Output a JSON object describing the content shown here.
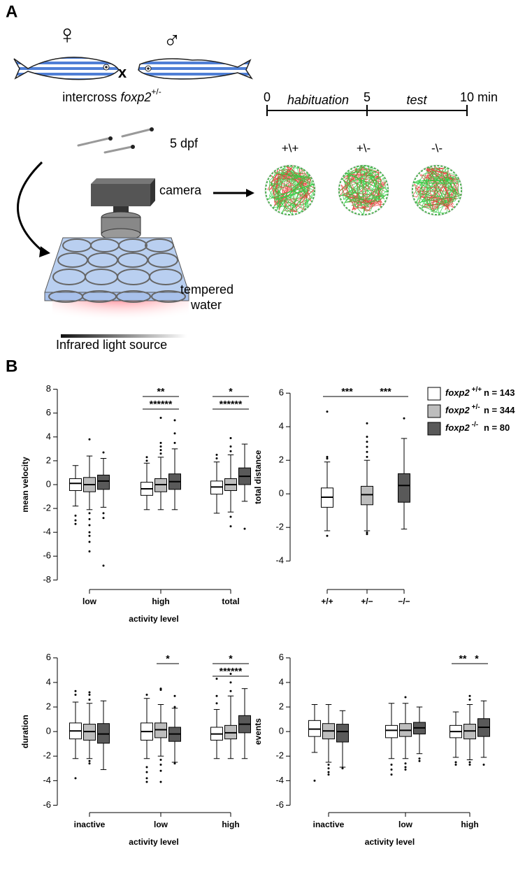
{
  "panel_a": {
    "label": "A",
    "female": "♀",
    "male": "♂",
    "cross": "x",
    "intercross": "intercross",
    "gene": "foxp2",
    "genotype": "+/-",
    "dpf": "5 dpf",
    "camera": "camera",
    "water_1": "tempered",
    "water_2": "water",
    "light": "Infrared light source",
    "timeline": {
      "start": "0",
      "phase1": "habituation",
      "mid": "5",
      "phase2": "test",
      "end": "10 min"
    },
    "tracks": [
      "+\\+",
      "+\\-",
      "-\\-"
    ]
  },
  "panel_b": {
    "label": "B"
  },
  "chart_data": [
    {
      "type": "box",
      "ylabel": "mean velocity",
      "xlabel": "activity level",
      "categories": [
        "low",
        "high",
        "total"
      ],
      "dodge": true,
      "ylim": [
        -8.8,
        8.8
      ],
      "yticks": [
        -8,
        -6,
        -4,
        -2,
        0,
        2,
        4,
        6,
        8
      ],
      "series": [
        {
          "color": "#ffffff",
          "boxes": [
            {
              "median": 0.1,
              "q1": -0.5,
              "q3": 0.5,
              "whisker_low": -1.8,
              "whisker_high": 1.6,
              "outliers": [
                -2.6,
                -3.0,
                -3.3
              ]
            },
            {
              "median": -0.35,
              "q1": -0.9,
              "q3": 0.2,
              "whisker_low": -2.1,
              "whisker_high": 1.8,
              "outliers": [
                2.0,
                2.3
              ]
            },
            {
              "median": -0.2,
              "q1": -0.8,
              "q3": 0.3,
              "whisker_low": -2.4,
              "whisker_high": 1.9,
              "outliers": [
                2.2,
                2.5
              ]
            }
          ]
        },
        {
          "color": "#bdbdbd",
          "boxes": [
            {
              "median": 0,
              "q1": -0.6,
              "q3": 0.6,
              "whisker_low": -2.1,
              "whisker_high": 2.4,
              "outliers": [
                3.8,
                -2.4,
                -2.9,
                -3.4,
                -4.0,
                -4.3,
                -4.8,
                -5.6
              ]
            },
            {
              "median": 0,
              "q1": -0.6,
              "q3": 0.5,
              "whisker_low": -2.1,
              "whisker_high": 2.3,
              "outliers": [
                2.6,
                2.9,
                3.2,
                3.5,
                5.6
              ]
            },
            {
              "median": 0,
              "q1": -0.5,
              "q3": 0.5,
              "whisker_low": -2.3,
              "whisker_high": 2.5,
              "outliers": [
                2.8,
                3.2,
                3.9,
                -2.7,
                -3.5
              ]
            }
          ]
        },
        {
          "color": "#595959",
          "boxes": [
            {
              "median": 0.3,
              "q1": -0.4,
              "q3": 0.8,
              "whisker_low": -1.9,
              "whisker_high": 2.2,
              "outliers": [
                2.7,
                -2.4,
                -2.8,
                -6.8
              ]
            },
            {
              "median": 0.25,
              "q1": -0.4,
              "q3": 0.9,
              "whisker_low": -2.1,
              "whisker_high": 3.0,
              "outliers": [
                3.5,
                4.3,
                5.4
              ]
            },
            {
              "median": 0.7,
              "q1": 0,
              "q3": 1.4,
              "whisker_low": -1.4,
              "whisker_high": 3.4,
              "outliers": [
                -3.7
              ]
            }
          ]
        }
      ],
      "annotations": [
        {
          "text": "**",
          "from": [
            1,
            0
          ],
          "to": [
            1,
            2
          ]
        },
        {
          "text": "******",
          "from": [
            1,
            0
          ],
          "to": [
            1,
            2
          ]
        },
        {
          "text": "*",
          "from": [
            2,
            0
          ],
          "to": [
            2,
            2
          ]
        },
        {
          "text": "******",
          "from": [
            2,
            0
          ],
          "to": [
            2,
            2
          ]
        }
      ]
    },
    {
      "type": "box",
      "ylabel": "total distance",
      "categories": [
        "+/+",
        "+/−",
        "−/−"
      ],
      "dodge": false,
      "ylim": [
        -5.7,
        6.8
      ],
      "yticks": [
        -4,
        -2,
        0,
        2,
        4,
        6
      ],
      "legend": true,
      "series": [
        {
          "name": "foxp2",
          "genotype": "+/+",
          "n": "n = 143",
          "color": "#ffffff",
          "boxes": [
            {
              "median": -0.2,
              "q1": -0.8,
              "q3": 0.35,
              "whisker_low": -2.2,
              "whisker_high": 1.9,
              "outliers": [
                2.1,
                2.2,
                4.9,
                -2.5
              ]
            },
            null,
            null
          ]
        },
        {
          "name": "foxp2",
          "genotype": "+/-",
          "n": "n = 344",
          "color": "#bdbdbd",
          "boxes": [
            null,
            {
              "median": -0.05,
              "q1": -0.65,
              "q3": 0.45,
              "whisker_low": -2.2,
              "whisker_high": 2.0,
              "outliers": [
                2.2,
                2.5,
                2.8,
                3.1,
                3.4,
                4.2,
                -2.3,
                -2.4
              ]
            },
            null
          ]
        },
        {
          "name": "foxp2",
          "genotype": "-/-",
          "n": "n = 80",
          "color": "#595959",
          "boxes": [
            null,
            null,
            {
              "median": 0.5,
              "q1": -0.5,
              "q3": 1.2,
              "whisker_low": -2.1,
              "whisker_high": 3.3,
              "outliers": [
                4.5
              ]
            }
          ]
        }
      ],
      "annotations": [
        {
          "text": "***",
          "from": [
            0,
            0
          ],
          "to": [
            1,
            1
          ]
        },
        {
          "text": "***",
          "from": [
            1,
            1
          ],
          "to": [
            2,
            2
          ]
        }
      ]
    },
    {
      "type": "box",
      "ylabel": "duration",
      "xlabel": "activity level",
      "categories": [
        "inactive",
        "low",
        "high"
      ],
      "dodge": true,
      "ylim": [
        -6.6,
        6.9
      ],
      "yticks": [
        -6,
        -4,
        -2,
        0,
        2,
        4,
        6
      ],
      "series": [
        {
          "color": "#ffffff",
          "boxes": [
            {
              "median": 0.05,
              "q1": -0.6,
              "q3": 0.7,
              "whisker_low": -2.2,
              "whisker_high": 2.4,
              "outliers": [
                3.0,
                3.3,
                -3.8
              ]
            },
            {
              "median": 0,
              "q1": -0.7,
              "q3": 0.7,
              "whisker_low": -2.2,
              "whisker_high": 2.7,
              "outliers": [
                3.0,
                -2.9,
                -3.3,
                -3.8,
                -4.1
              ]
            },
            {
              "median": -0.2,
              "q1": -0.7,
              "q3": 0.35,
              "whisker_low": -2.2,
              "whisker_high": 1.8,
              "outliers": [
                2.3,
                2.9,
                4.3
              ]
            }
          ]
        },
        {
          "color": "#bdbdbd",
          "boxes": [
            {
              "median": 0,
              "q1": -0.7,
              "q3": 0.6,
              "whisker_low": -2.2,
              "whisker_high": 2.3,
              "outliers": [
                2.6,
                3.0,
                3.2,
                -2.4,
                -2.6
              ]
            },
            {
              "median": 0.15,
              "q1": -0.5,
              "q3": 0.7,
              "whisker_low": -2.0,
              "whisker_high": 2.2,
              "outliers": [
                3.4,
                3.5,
                -2.3,
                -2.7,
                -3.2,
                -4.1
              ]
            },
            {
              "median": -0.1,
              "q1": -0.6,
              "q3": 0.5,
              "whisker_low": -2.2,
              "whisker_high": 2.9,
              "outliers": [
                3.3,
                4.0,
                4.7
              ]
            }
          ]
        },
        {
          "color": "#595959",
          "boxes": [
            {
              "median": -0.2,
              "q1": -0.95,
              "q3": 0.65,
              "whisker_low": -3.1,
              "whisker_high": 2.5,
              "outliers": []
            },
            {
              "median": -0.2,
              "q1": -0.8,
              "q3": 0.35,
              "whisker_low": -2.5,
              "whisker_high": 1.9,
              "outliers": [
                2.0,
                2.9,
                -2.6
              ]
            },
            {
              "median": 0.6,
              "q1": -0.1,
              "q3": 1.3,
              "whisker_low": -2.2,
              "whisker_high": 3.5,
              "outliers": []
            }
          ]
        }
      ],
      "annotations": [
        {
          "text": "*",
          "from": [
            1,
            1
          ],
          "to": [
            1,
            2
          ]
        },
        {
          "text": "*",
          "from": [
            2,
            0
          ],
          "to": [
            2,
            2
          ]
        },
        {
          "text": "******",
          "from": [
            2,
            0
          ],
          "to": [
            2,
            2
          ]
        }
      ]
    },
    {
      "type": "box",
      "ylabel": "events",
      "xlabel": "activity level",
      "categories": [
        "inactive",
        "low",
        "high"
      ],
      "dodge": true,
      "ylim": [
        -6.6,
        6.9
      ],
      "yticks": [
        -6,
        -4,
        -2,
        0,
        2,
        4,
        6
      ],
      "series": [
        {
          "color": "#ffffff",
          "boxes": [
            {
              "median": 0.2,
              "q1": -0.4,
              "q3": 0.9,
              "whisker_low": -1.7,
              "whisker_high": 2.2,
              "outliers": [
                -4.0
              ]
            },
            {
              "median": 0.1,
              "q1": -0.5,
              "q3": 0.5,
              "whisker_low": -2.2,
              "whisker_high": 2.3,
              "outliers": [
                -2.7,
                -3.1,
                -3.5
              ]
            },
            {
              "median": 0,
              "q1": -0.5,
              "q3": 0.5,
              "whisker_low": -2.1,
              "whisker_high": 1.6,
              "outliers": [
                -2.5,
                -2.7
              ]
            }
          ]
        },
        {
          "color": "#bdbdbd",
          "boxes": [
            {
              "median": 0.05,
              "q1": -0.6,
              "q3": 0.65,
              "whisker_low": -2.5,
              "whisker_high": 2.2,
              "outliers": [
                -2.7,
                -3.0,
                -3.3,
                -3.5
              ]
            },
            {
              "median": 0.1,
              "q1": -0.4,
              "q3": 0.65,
              "whisker_low": -2.2,
              "whisker_high": 2.3,
              "outliers": [
                2.8,
                -2.6,
                -2.9,
                -3.1
              ]
            },
            {
              "median": 0.05,
              "q1": -0.6,
              "q3": 0.6,
              "whisker_low": -2.3,
              "whisker_high": 2.2,
              "outliers": [
                2.6,
                2.9,
                -2.5,
                -2.7
              ]
            }
          ]
        },
        {
          "color": "#595959",
          "boxes": [
            {
              "median": 0,
              "q1": -0.85,
              "q3": 0.6,
              "whisker_low": -2.9,
              "whisker_high": 1.7,
              "outliers": [
                -3.0
              ]
            },
            {
              "median": 0.3,
              "q1": -0.2,
              "q3": 0.75,
              "whisker_low": -1.8,
              "whisker_high": 2.0,
              "outliers": [
                -2.2,
                -2.4
              ]
            },
            {
              "median": 0.35,
              "q1": -0.4,
              "q3": 1.05,
              "whisker_low": -2.1,
              "whisker_high": 2.5,
              "outliers": [
                -2.7
              ]
            }
          ]
        }
      ],
      "annotations": [
        {
          "text": "**",
          "from": [
            2,
            0
          ],
          "to": [
            2,
            1
          ]
        },
        {
          "text": "*",
          "from": [
            2,
            1
          ],
          "to": [
            2,
            2
          ]
        }
      ]
    }
  ]
}
